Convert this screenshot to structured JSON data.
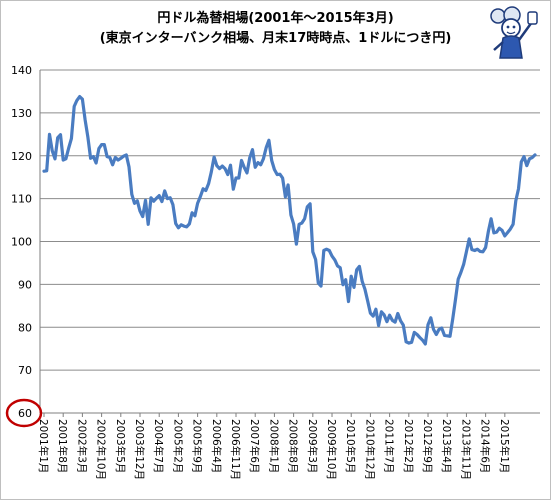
{
  "chart_data": {
    "type": "line",
    "title": "円ドル為替相場(2001年～2015年3月)",
    "subtitle": "(東京インターバンク相場、月末17時時点、1ドルにつき円)",
    "ylim": [
      60,
      140
    ],
    "y_ticks": [
      "60",
      "70",
      "80",
      "90",
      "100",
      "110",
      "120",
      "130",
      "140"
    ],
    "x_tick_labels": [
      "2001年1月",
      "2001年8月",
      "2002年3月",
      "2002年10月",
      "2003年5月",
      "2003年12月",
      "2004年7月",
      "2005年2月",
      "2005年9月",
      "2006年4月",
      "2006年11月",
      "2007年6月",
      "2008年1月",
      "2008年8月",
      "2009年3月",
      "2009年10月",
      "2010年5月",
      "2010年12月",
      "2011年7月",
      "2012年2月",
      "2012年9月",
      "2013年4月",
      "2013年11月",
      "2014年6月",
      "2015年1月"
    ],
    "x_start": "2001-01",
    "x_end": "2015-03",
    "grid": true,
    "legend": "none",
    "highlight": "60",
    "series": [
      {
        "values": [
          116.4,
          116.5,
          125.0,
          121.2,
          119.3,
          124.2,
          124.9,
          119.0,
          119.3,
          121.8,
          124.0,
          131.5,
          132.9,
          133.8,
          133.2,
          128.4,
          124.3,
          119.4,
          119.8,
          118.3,
          121.7,
          122.6,
          122.6,
          119.8,
          119.6,
          117.9,
          119.6,
          119.0,
          119.4,
          119.9,
          120.2,
          117.4,
          111.0,
          108.9,
          109.5,
          107.1,
          105.8,
          109.6,
          104.0,
          110.2,
          109.4,
          110.1,
          110.7,
          109.3,
          111.8,
          110.0,
          110.2,
          108.6,
          104.2,
          103.2,
          103.9,
          103.6,
          103.4,
          104.1,
          106.7,
          106.0,
          108.9,
          110.5,
          112.3,
          111.9,
          113.5,
          116.2,
          119.7,
          117.7,
          117.0,
          117.6,
          117.0,
          115.6,
          117.8,
          112.2,
          114.8,
          114.8,
          118.9,
          117.3,
          116.0,
          119.5,
          121.4,
          117.3,
          118.4,
          117.9,
          119.3,
          121.9,
          123.6,
          118.9,
          116.8,
          115.6,
          115.7,
          114.8,
          110.4,
          113.2,
          106.2,
          104.1,
          99.4,
          104.0,
          104.3,
          105.3,
          108.1,
          108.8,
          97.6,
          95.8,
          90.3,
          89.6,
          97.9,
          98.2,
          97.9,
          96.6,
          95.7,
          94.3,
          93.9,
          89.9,
          91.1,
          86.0,
          91.9,
          89.3,
          93.4,
          94.2,
          90.7,
          88.9,
          86.1,
          83.3,
          82.6,
          84.2,
          80.4,
          83.6,
          82.9,
          81.3,
          82.8,
          81.6,
          81.2,
          83.2,
          81.5,
          80.5,
          76.6,
          76.3,
          76.5,
          78.8,
          78.3,
          77.6,
          77.0,
          76.1,
          80.6,
          82.2,
          79.5,
          78.3,
          79.5,
          79.8,
          78.1,
          78.0,
          77.9,
          81.9,
          86.5,
          91.2,
          92.8,
          94.7,
          97.6,
          100.6,
          98.1,
          97.9,
          98.2,
          97.7,
          97.6,
          98.6,
          102.4,
          105.3,
          102.0,
          102.2,
          103.1,
          102.6,
          101.3,
          102.1,
          102.9,
          104.0,
          109.5,
          112.3,
          118.6,
          119.8,
          117.7,
          119.3,
          119.6,
          120.2
        ]
      }
    ]
  }
}
